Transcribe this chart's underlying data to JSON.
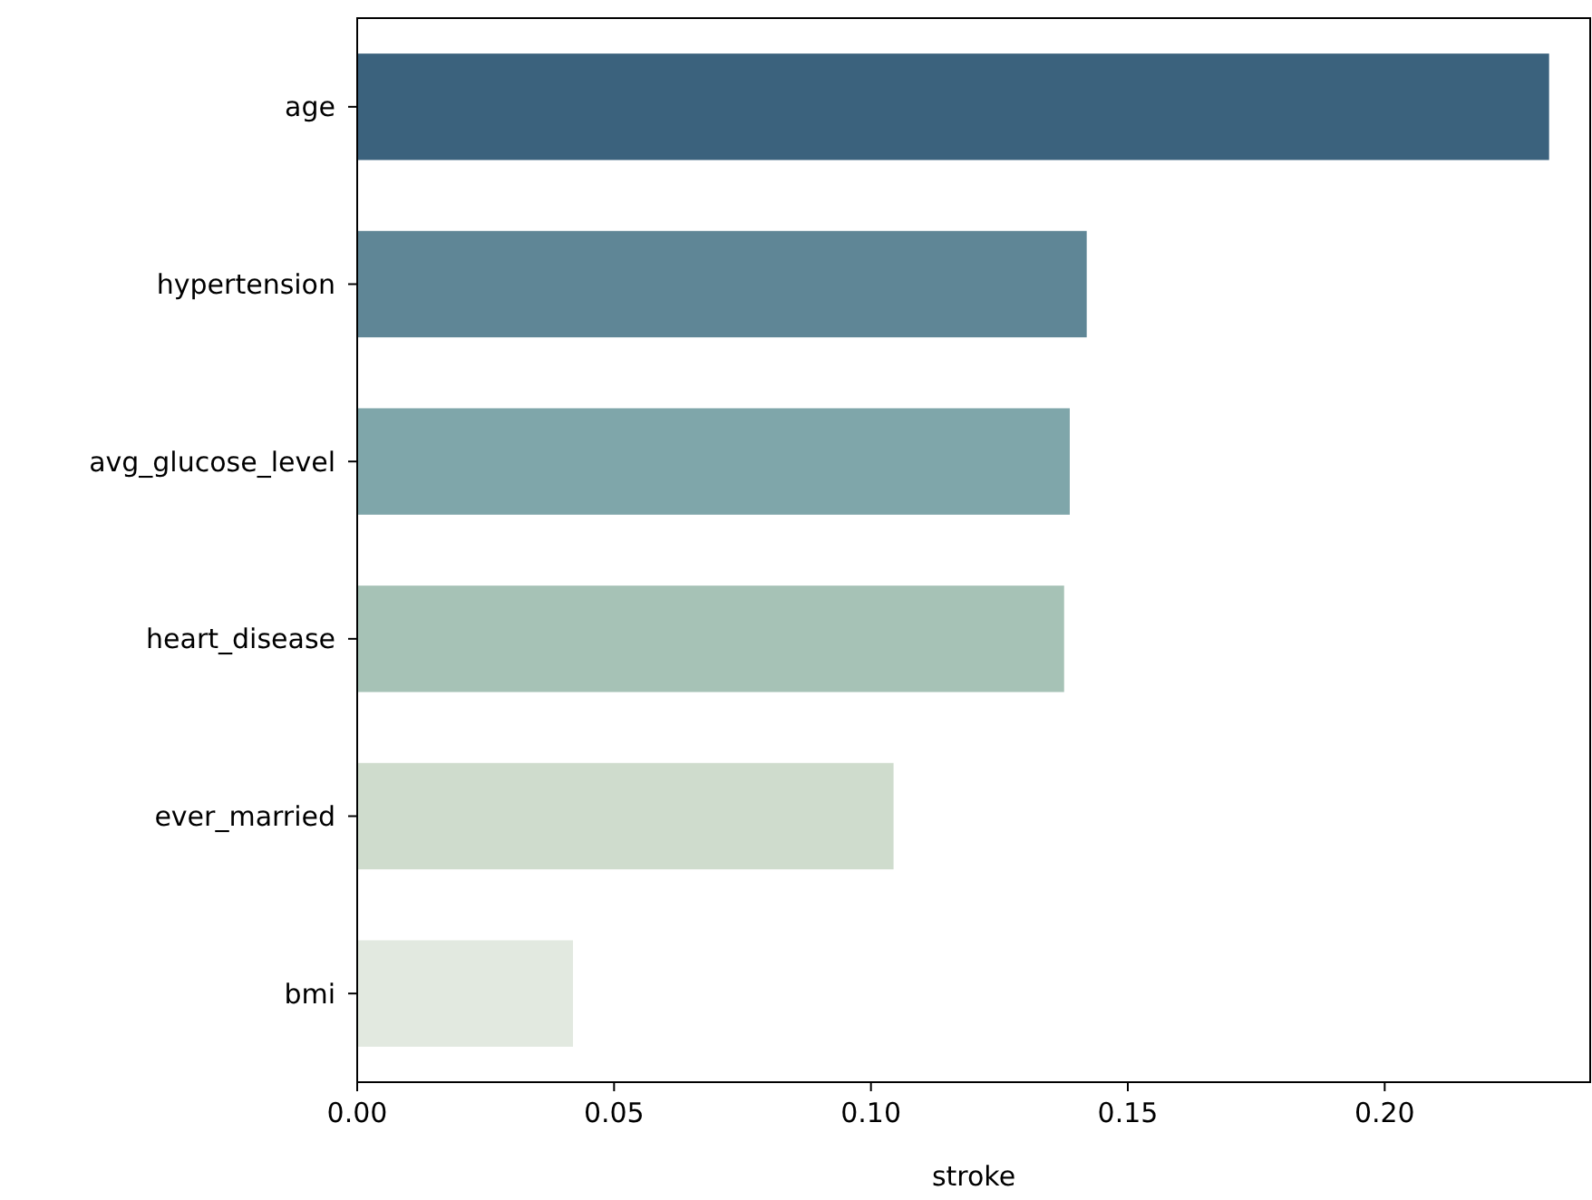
{
  "chart_data": {
    "type": "bar",
    "orientation": "horizontal",
    "xlabel": "stroke",
    "categories": [
      "age",
      "hypertension",
      "avg_glucose_level",
      "heart_disease",
      "ever_married",
      "bmi"
    ],
    "values": [
      0.232,
      0.142,
      0.1387,
      0.1376,
      0.1044,
      0.042
    ],
    "colors": [
      "#3b627d",
      "#5f8696",
      "#7fa6aa",
      "#a6c2b6",
      "#cfdccd",
      "#e2e9e0"
    ],
    "xlim": [
      0,
      0.24
    ],
    "xticks": [
      {
        "value": 0,
        "label": "0.00"
      },
      {
        "value": 0.05,
        "label": "0.05"
      },
      {
        "value": 0.1,
        "label": "0.10"
      },
      {
        "value": 0.15,
        "label": "0.15"
      },
      {
        "value": 0.2,
        "label": "0.20"
      }
    ]
  }
}
